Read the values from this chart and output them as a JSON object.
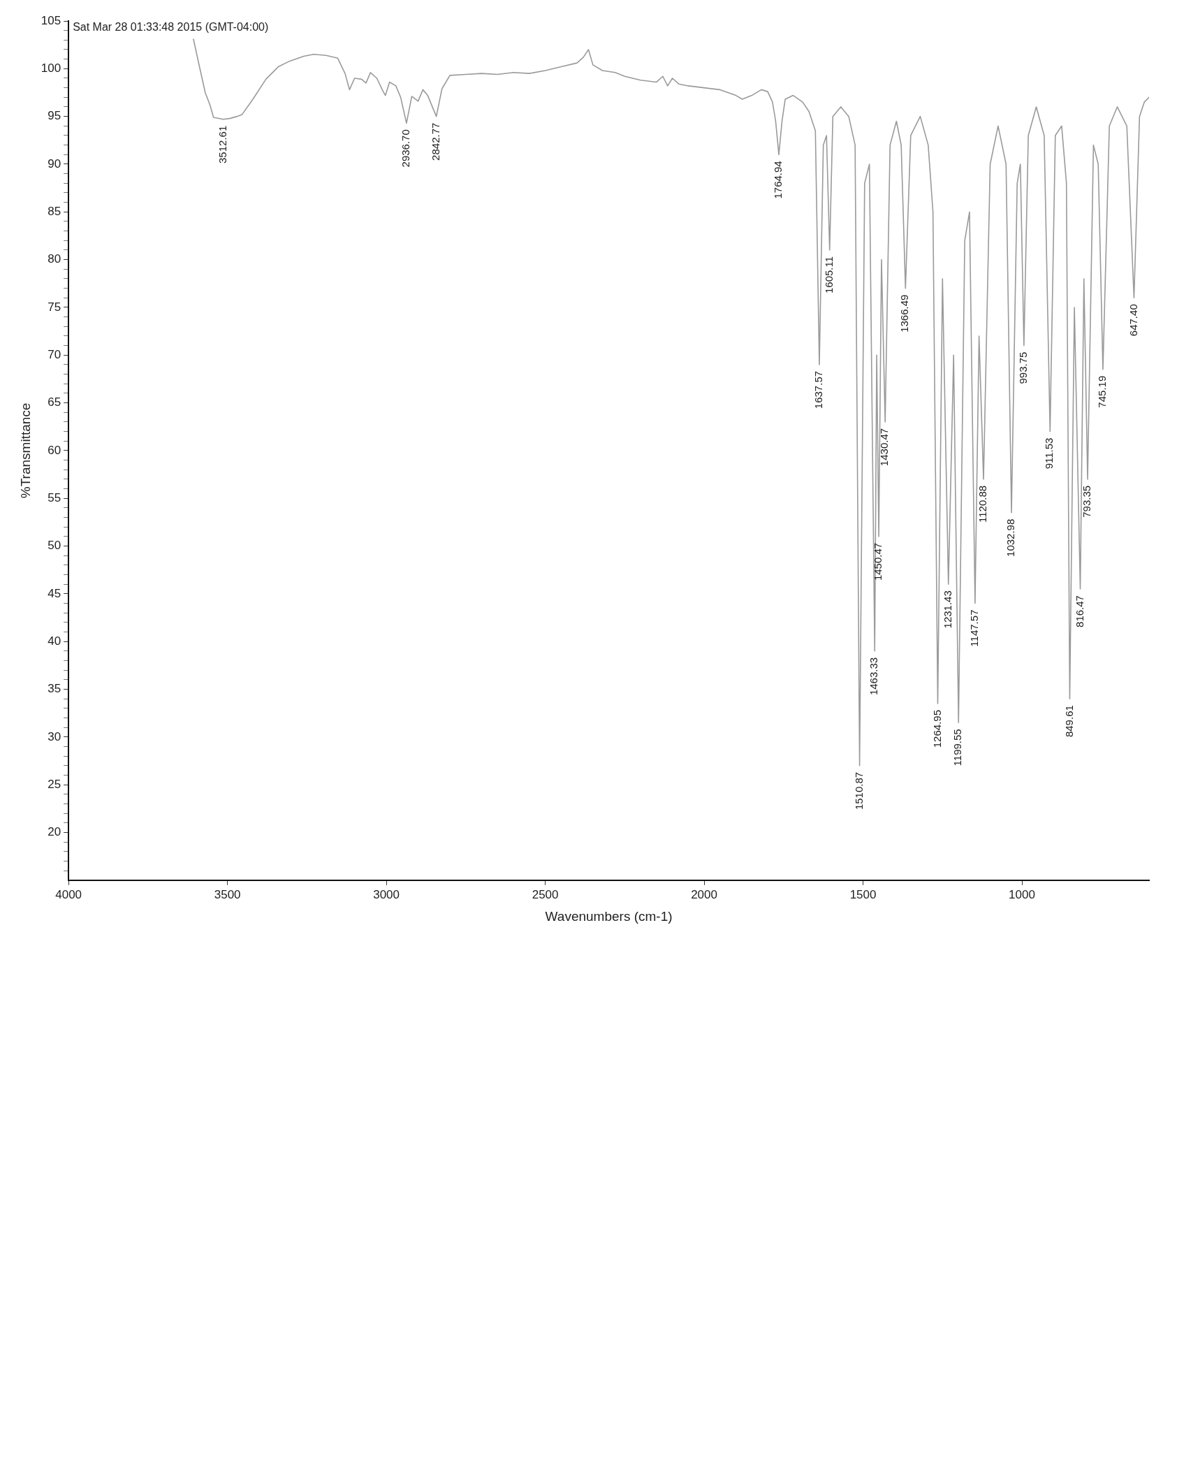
{
  "chart_data": {
    "type": "line",
    "title": "Sat Mar 28 01:33:48 2015 (GMT-04:00)",
    "xlabel": "Wavenumbers (cm-1)",
    "ylabel": "%Transmittance",
    "x": [
      3607,
      3590,
      3570,
      3555,
      3544,
      3512.61,
      3491,
      3470,
      3454,
      3420,
      3379,
      3340,
      3304,
      3260,
      3229,
      3190,
      3153,
      3130,
      3116,
      3100,
      3078,
      3064,
      3050,
      3030,
      3010,
      3003,
      2990,
      2970,
      2955,
      2936.7,
      2920,
      2900,
      2885,
      2870,
      2842.77,
      2825,
      2800,
      2750,
      2700,
      2650,
      2600,
      2550,
      2500,
      2450,
      2400,
      2380,
      2364,
      2350,
      2320,
      2280,
      2250,
      2200,
      2150,
      2130,
      2115,
      2100,
      2080,
      2050,
      2000,
      1950,
      1900,
      1880,
      1850,
      1820,
      1800,
      1785,
      1775,
      1764.94,
      1755,
      1745,
      1720,
      1690,
      1670,
      1650,
      1637.57,
      1625,
      1615,
      1605.11,
      1595,
      1570,
      1545,
      1525,
      1510.87,
      1495,
      1480,
      1463.33,
      1457,
      1450.47,
      1442,
      1430.47,
      1415,
      1395,
      1380,
      1366.49,
      1350,
      1320,
      1295,
      1280,
      1264.95,
      1250,
      1231.43,
      1215,
      1199.55,
      1180,
      1165,
      1147.57,
      1135,
      1120.88,
      1100,
      1075,
      1050,
      1032.98,
      1015,
      1005,
      993.75,
      980,
      955,
      930,
      911.53,
      895,
      875,
      860,
      849.61,
      835,
      816.47,
      805,
      793.35,
      775,
      760,
      745.19,
      725,
      700,
      670,
      647.4,
      630,
      615,
      600
    ],
    "series": [
      {
        "color": "#9a9a9a",
        "values": [
          103.1,
          100.5,
          97.5,
          96.2,
          94.9,
          94.7,
          94.8,
          95,
          95.2,
          96.8,
          98.9,
          100.2,
          100.8,
          101.3,
          101.5,
          101.4,
          101.1,
          99.5,
          97.8,
          99,
          98.9,
          98.5,
          99.6,
          99,
          97.6,
          97.2,
          98.6,
          98.2,
          97,
          94.3,
          97.1,
          96.6,
          97.8,
          97.2,
          95,
          97.9,
          99.3,
          99.4,
          99.5,
          99.4,
          99.6,
          99.5,
          99.8,
          100.2,
          100.6,
          101.2,
          102,
          100.4,
          99.8,
          99.6,
          99.2,
          98.8,
          98.6,
          99.2,
          98.2,
          99,
          98.4,
          98.2,
          98,
          97.8,
          97.2,
          96.8,
          97.2,
          97.8,
          97.6,
          96.5,
          94.5,
          91,
          94.5,
          96.8,
          97.2,
          96.5,
          95.5,
          93.5,
          69,
          92,
          93,
          81,
          95,
          96,
          95,
          92,
          27,
          88,
          90,
          39,
          70,
          51,
          80,
          63,
          92,
          94.5,
          92,
          77,
          93,
          95,
          92,
          85,
          33.5,
          78,
          46,
          70,
          31.5,
          82,
          85,
          44,
          72,
          57,
          90,
          94,
          90,
          53.5,
          88,
          90,
          71,
          93,
          96,
          93,
          62,
          93,
          94,
          88,
          34,
          75,
          45.5,
          78,
          57,
          92,
          90,
          68.5,
          94,
          96,
          94,
          76,
          95,
          96.5,
          97
        ]
      }
    ],
    "marker": "none",
    "xlim": [
      4000,
      600
    ],
    "xticks": [
      4000,
      3500,
      3000,
      2500,
      2000,
      1500,
      1000
    ],
    "ylim": [
      15,
      105
    ],
    "yticks": [
      {
        "value": 16,
        "label": null
      },
      {
        "value": 17,
        "label": null
      },
      {
        "value": 18,
        "label": null
      },
      {
        "value": 19,
        "label": null
      },
      20,
      {
        "value": 21,
        "label": null
      },
      {
        "value": 22,
        "label": null
      },
      {
        "value": 23,
        "label": null
      },
      {
        "value": 24,
        "label": null
      },
      25,
      {
        "value": 26,
        "label": null
      },
      {
        "value": 27,
        "label": null
      },
      {
        "value": 28,
        "label": null
      },
      {
        "value": 29,
        "label": null
      },
      30,
      {
        "value": 31,
        "label": null
      },
      {
        "value": 32,
        "label": null
      },
      {
        "value": 33,
        "label": null
      },
      {
        "value": 34,
        "label": null
      },
      35,
      {
        "value": 36,
        "label": null
      },
      {
        "value": 37,
        "label": null
      },
      {
        "value": 38,
        "label": null
      },
      {
        "value": 39,
        "label": null
      },
      40,
      {
        "value": 41,
        "label": null
      },
      {
        "value": 42,
        "label": null
      },
      {
        "value": 43,
        "label": null
      },
      {
        "value": 44,
        "label": null
      },
      45,
      {
        "value": 46,
        "label": null
      },
      {
        "value": 47,
        "label": null
      },
      {
        "value": 48,
        "label": null
      },
      {
        "value": 49,
        "label": null
      },
      50,
      {
        "value": 51,
        "label": null
      },
      {
        "value": 52,
        "label": null
      },
      {
        "value": 53,
        "label": null
      },
      {
        "value": 54,
        "label": null
      },
      55,
      {
        "value": 56,
        "label": null
      },
      {
        "value": 57,
        "label": null
      },
      {
        "value": 58,
        "label": null
      },
      {
        "value": 59,
        "label": null
      },
      60,
      {
        "value": 61,
        "label": null
      },
      {
        "value": 62,
        "label": null
      },
      {
        "value": 63,
        "label": null
      },
      {
        "value": 64,
        "label": null
      },
      65,
      {
        "value": 66,
        "label": null
      },
      {
        "value": 67,
        "label": null
      },
      {
        "value": 68,
        "label": null
      },
      {
        "value": 69,
        "label": null
      },
      70,
      {
        "value": 71,
        "label": null
      },
      {
        "value": 72,
        "label": null
      },
      {
        "value": 73,
        "label": null
      },
      {
        "value": 74,
        "label": null
      },
      75,
      {
        "value": 76,
        "label": null
      },
      {
        "value": 77,
        "label": null
      },
      {
        "value": 78,
        "label": null
      },
      {
        "value": 79,
        "label": null
      },
      80,
      {
        "value": 81,
        "label": null
      },
      {
        "value": 82,
        "label": null
      },
      {
        "value": 83,
        "label": null
      },
      {
        "value": 84,
        "label": null
      },
      85,
      {
        "value": 86,
        "label": null
      },
      {
        "value": 87,
        "label": null
      },
      {
        "value": 88,
        "label": null
      },
      {
        "value": 89,
        "label": null
      },
      90,
      {
        "value": 91,
        "label": null
      },
      {
        "value": 92,
        "label": null
      },
      {
        "value": 93,
        "label": null
      },
      {
        "value": 94,
        "label": null
      },
      95,
      {
        "value": 96,
        "label": null
      },
      {
        "value": 97,
        "label": null
      },
      {
        "value": 98,
        "label": null
      },
      {
        "value": 99,
        "label": null
      },
      100,
      {
        "value": 101,
        "label": null
      },
      {
        "value": 102,
        "label": null
      },
      {
        "value": 103,
        "label": null
      },
      {
        "value": 104,
        "label": null
      },
      105
    ],
    "annotations": [
      {
        "text": "3512.61",
        "x": 3512.61,
        "y": 94.7
      },
      {
        "text": "2936.70",
        "x": 2936.7,
        "y": 94.3
      },
      {
        "text": "2842.77",
        "x": 2842.77,
        "y": 95
      },
      {
        "text": "1764.94",
        "x": 1764.94,
        "y": 91
      },
      {
        "text": "1637.57",
        "x": 1637.57,
        "y": 69
      },
      {
        "text": "1605.11",
        "x": 1605.11,
        "y": 81
      },
      {
        "text": "1510.87",
        "x": 1510.87,
        "y": 27
      },
      {
        "text": "1463.33",
        "x": 1463.33,
        "y": 39
      },
      {
        "text": "1450.47",
        "x": 1450.47,
        "y": 51
      },
      {
        "text": "1430.47",
        "x": 1430.47,
        "y": 63
      },
      {
        "text": "1366.49",
        "x": 1366.49,
        "y": 77
      },
      {
        "text": "1264.95",
        "x": 1264.95,
        "y": 33.5
      },
      {
        "text": "1231.43",
        "x": 1231.43,
        "y": 46
      },
      {
        "text": "1199.55",
        "x": 1199.55,
        "y": 31.5
      },
      {
        "text": "1147.57",
        "x": 1147.57,
        "y": 44
      },
      {
        "text": "1120.88",
        "x": 1120.88,
        "y": 57
      },
      {
        "text": "1032.98",
        "x": 1032.98,
        "y": 53.5
      },
      {
        "text": "993.75",
        "x": 993.75,
        "y": 71
      },
      {
        "text": "911.53",
        "x": 911.53,
        "y": 62
      },
      {
        "text": "849.61",
        "x": 849.61,
        "y": 34
      },
      {
        "text": "816.47",
        "x": 816.47,
        "y": 45.5
      },
      {
        "text": "793.35",
        "x": 793.35,
        "y": 57
      },
      {
        "text": "745.19",
        "x": 745.19,
        "y": 68.5
      },
      {
        "text": "647.40",
        "x": 647.4,
        "y": 76
      }
    ]
  }
}
